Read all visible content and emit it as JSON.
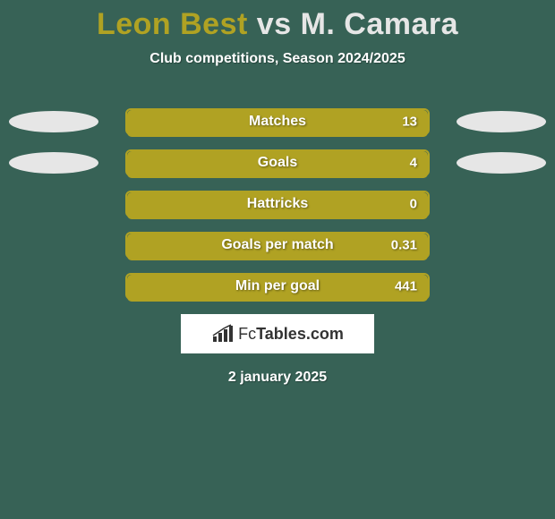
{
  "colors": {
    "background": "#376256",
    "player1": "#b0a223",
    "player2": "#e6e6e6",
    "subtitle": "#ffffff",
    "track_bg": "#376256",
    "track_border": "#b0a223",
    "brand_bg": "#ffffff",
    "brand_text": "#333333",
    "brand_icon": "#333333",
    "date_text": "#ffffff"
  },
  "title": {
    "player1": "Leon Best",
    "vs": "vs",
    "player2": "M. Camara",
    "fontsize": 34
  },
  "subtitle": "Club competitions, Season 2024/2025",
  "ellipses": {
    "rows_with_ellipses": [
      0,
      1
    ],
    "left_width": 100,
    "left_height": 24,
    "right_width": 100,
    "right_height": 24
  },
  "stats": [
    {
      "label": "Matches",
      "value_text": "13",
      "fill_pct": 100
    },
    {
      "label": "Goals",
      "value_text": "4",
      "fill_pct": 100
    },
    {
      "label": "Hattricks",
      "value_text": "0",
      "fill_pct": 100
    },
    {
      "label": "Goals per match",
      "value_text": "0.31",
      "fill_pct": 100
    },
    {
      "label": "Min per goal",
      "value_text": "441",
      "fill_pct": 100
    }
  ],
  "bar": {
    "track_width": 340,
    "track_height": 30,
    "border_radius": 6,
    "border_width": 2,
    "label_fontsize": 16,
    "value_fontsize": 15
  },
  "brand": {
    "prefix": "Fc",
    "rest": "Tables.com"
  },
  "date": "2 january 2025"
}
